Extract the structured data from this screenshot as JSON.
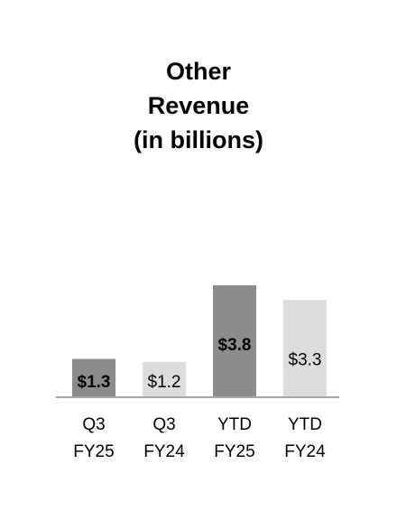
{
  "chart_data": {
    "type": "bar",
    "title_lines": [
      "Other",
      "Revenue",
      "(in billions)"
    ],
    "categories": [
      [
        "Q3",
        "FY25"
      ],
      [
        "Q3",
        "FY24"
      ],
      [
        "YTD",
        "FY25"
      ],
      [
        "YTD",
        "FY24"
      ]
    ],
    "values": [
      1.3,
      1.2,
      3.8,
      3.3
    ],
    "value_labels": [
      "$1.3",
      "$1.2",
      "$3.8",
      "$3.3"
    ],
    "emphasized": [
      true,
      false,
      true,
      false
    ],
    "colors": {
      "current_period": "#8c8c8c",
      "prior_period": "#dcdcdc",
      "baseline": "#a6a6a6",
      "text": "#000000"
    },
    "ylim": [
      0,
      3.8
    ],
    "grid": false,
    "legend": "none"
  }
}
